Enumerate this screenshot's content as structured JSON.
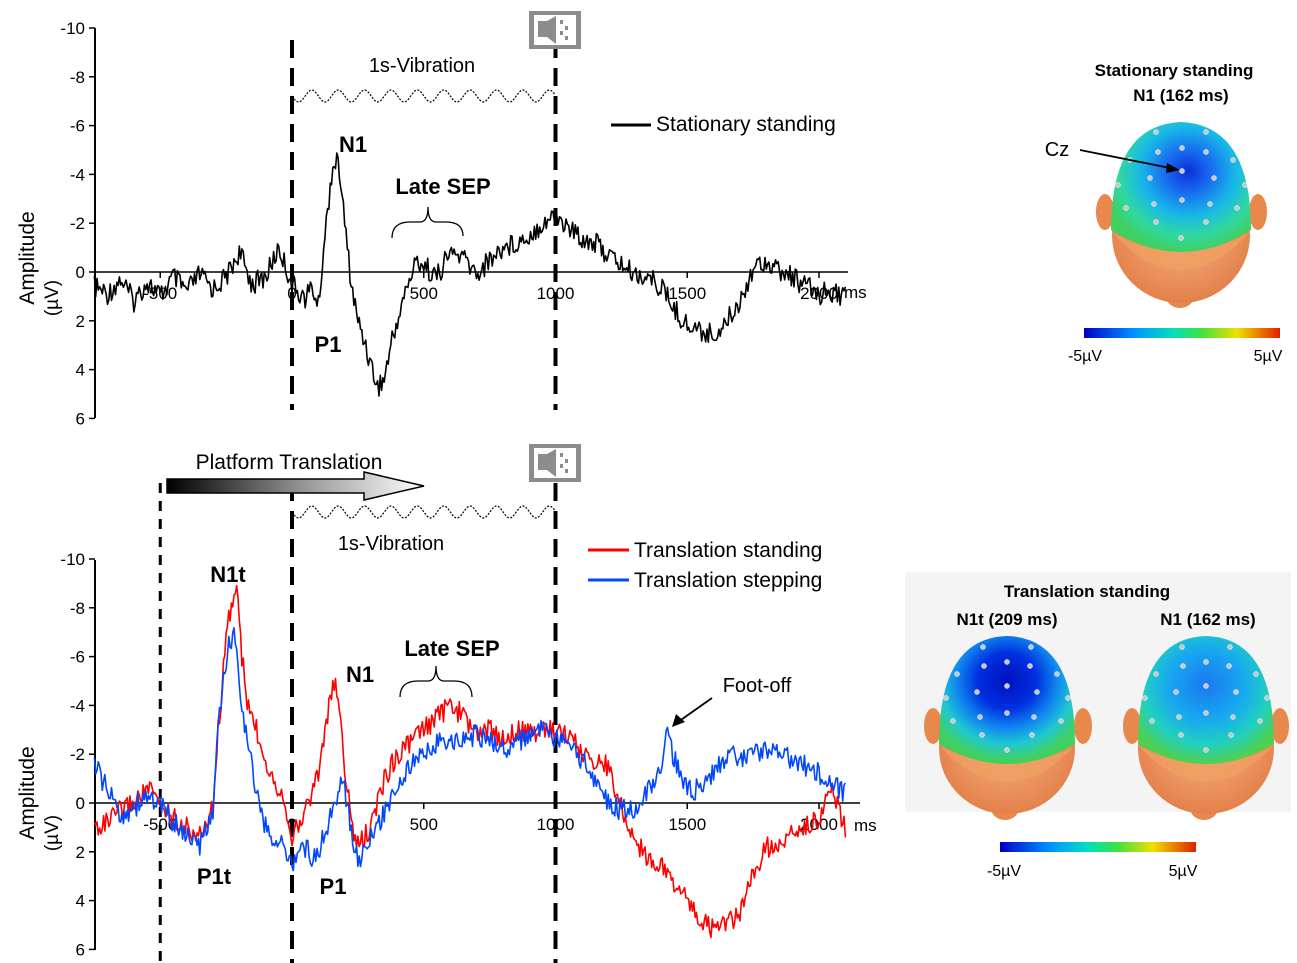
{
  "chart_data": [
    {
      "type": "line",
      "panel": "top",
      "ylabel": "Amplitude",
      "yunit": "(µV)",
      "x_unit": "ms",
      "xlim": [
        -750,
        2100
      ],
      "ylim": [
        6,
        -10
      ],
      "negative_up": true,
      "x_ticks": [
        "-500",
        "0",
        "500",
        "1000",
        "1500",
        "2000"
      ],
      "x_tick_values": [
        -500,
        0,
        500,
        1000,
        1500,
        2000
      ],
      "y_ticks": [
        "-10",
        "-8",
        "-6",
        "-4",
        "-2",
        "0",
        "2",
        "4",
        "6"
      ],
      "y_tick_values": [
        -10,
        -8,
        -6,
        -4,
        -2,
        0,
        2,
        4,
        6
      ],
      "event_lines_ms": [
        0,
        1000
      ],
      "vibration_label": "1s-Vibration",
      "series": [
        {
          "name": "Stationary standing",
          "color": "#000000",
          "x": [
            -750,
            -700,
            -650,
            -600,
            -550,
            -500,
            -450,
            -400,
            -350,
            -300,
            -250,
            -200,
            -150,
            -100,
            -50,
            0,
            25,
            50,
            75,
            100,
            125,
            150,
            162,
            180,
            200,
            225,
            250,
            275,
            300,
            325,
            350,
            375,
            400,
            425,
            450,
            475,
            500,
            550,
            600,
            650,
            700,
            750,
            800,
            850,
            900,
            950,
            1000,
            1050,
            1100,
            1150,
            1200,
            1250,
            1300,
            1350,
            1400,
            1450,
            1500,
            1550,
            1600,
            1650,
            1700,
            1750,
            1800,
            1850,
            1900,
            1950,
            2000,
            2050,
            2100
          ],
          "y": [
            0.6,
            0.9,
            0.3,
            1.2,
            0.4,
            1.0,
            0.2,
            0.8,
            0.1,
            0.7,
            0.2,
            -0.8,
            0.5,
            0.2,
            -1.0,
            0.5,
            0.8,
            1.1,
            0.6,
            1.4,
            -1.5,
            -4.0,
            -4.6,
            -4.2,
            -2.0,
            0.5,
            2.0,
            2.8,
            3.8,
            4.7,
            4.4,
            3.0,
            2.0,
            1.0,
            0.2,
            -0.5,
            -0.3,
            0.2,
            -0.8,
            -0.6,
            0.1,
            -0.5,
            -1.0,
            -1.2,
            -1.5,
            -2.0,
            -2.3,
            -1.8,
            -1.4,
            -1.2,
            -0.7,
            -0.3,
            0.1,
            0.2,
            0.6,
            1.5,
            2.2,
            2.4,
            2.6,
            2.0,
            1.2,
            -0.2,
            -0.5,
            0.0,
            0.2,
            0.6,
            0.9,
            0.8,
            1.0
          ]
        }
      ],
      "annotations": [
        {
          "text": "N1",
          "x_ms": 162
        },
        {
          "text": "P1",
          "x_ms": 75
        },
        {
          "text": "Late SEP",
          "x_ms": 540
        }
      ]
    },
    {
      "type": "line",
      "panel": "bottom",
      "ylabel": "Amplitude",
      "yunit": "(µV)",
      "x_unit": "ms",
      "xlim": [
        -750,
        2100
      ],
      "ylim": [
        6,
        -10
      ],
      "negative_up": true,
      "x_ticks": [
        "-500",
        "0",
        "500",
        "1000",
        "1500",
        "2000"
      ],
      "x_tick_values": [
        -500,
        0,
        500,
        1000,
        1500,
        2000
      ],
      "y_ticks": [
        "-10",
        "-8",
        "-6",
        "-4",
        "-2",
        "0",
        "2",
        "4",
        "6"
      ],
      "y_tick_values": [
        -10,
        -8,
        -6,
        -4,
        -2,
        0,
        2,
        4,
        6
      ],
      "event_lines_ms": [
        -500,
        0,
        1000
      ],
      "vibration_label": "1s-Vibration",
      "platform_label": "Platform Translation",
      "series": [
        {
          "name": "Translation standing",
          "color": "#ff0000",
          "x": [
            -750,
            -700,
            -650,
            -600,
            -550,
            -500,
            -450,
            -400,
            -350,
            -300,
            -280,
            -260,
            -240,
            -220,
            -209,
            -190,
            -170,
            -150,
            -120,
            -90,
            -60,
            -30,
            0,
            25,
            50,
            75,
            100,
            125,
            150,
            162,
            180,
            200,
            225,
            250,
            300,
            350,
            400,
            450,
            500,
            550,
            600,
            650,
            700,
            750,
            800,
            850,
            900,
            950,
            1000,
            1050,
            1100,
            1150,
            1200,
            1250,
            1300,
            1350,
            1400,
            1450,
            1500,
            1550,
            1600,
            1650,
            1700,
            1750,
            1800,
            1850,
            1900,
            1950,
            2000,
            2050,
            2100
          ],
          "y": [
            1.0,
            0.8,
            0.3,
            0.0,
            -0.6,
            0.0,
            0.6,
            1.0,
            1.4,
            0.2,
            -3.0,
            -5.5,
            -7.6,
            -8.5,
            -8.8,
            -6.0,
            -4.0,
            -3.5,
            -2.5,
            -1.5,
            -0.8,
            -0.2,
            1.3,
            1.0,
            0.3,
            -0.5,
            -1.2,
            -3.0,
            -4.5,
            -4.8,
            -4.0,
            -1.5,
            0.8,
            1.8,
            1.0,
            -1.0,
            -2.0,
            -2.5,
            -3.0,
            -3.5,
            -4.0,
            -3.6,
            -2.8,
            -3.0,
            -2.6,
            -3.0,
            -2.8,
            -3.1,
            -3.0,
            -2.8,
            -2.0,
            -1.8,
            -1.5,
            0.2,
            1.5,
            2.2,
            2.6,
            3.2,
            4.0,
            4.8,
            5.2,
            4.9,
            4.6,
            3.0,
            1.8,
            1.8,
            1.2,
            1.0,
            0.6,
            -0.5,
            1.0
          ]
        },
        {
          "name": "Translation stepping",
          "color": "#0047ff",
          "x": [
            -750,
            -700,
            -650,
            -600,
            -550,
            -500,
            -450,
            -400,
            -350,
            -300,
            -280,
            -260,
            -240,
            -220,
            -209,
            -190,
            -170,
            -150,
            -120,
            -90,
            -60,
            -30,
            0,
            25,
            50,
            75,
            100,
            125,
            150,
            162,
            180,
            200,
            225,
            250,
            300,
            350,
            400,
            450,
            500,
            550,
            600,
            650,
            700,
            750,
            800,
            850,
            900,
            950,
            1000,
            1050,
            1100,
            1150,
            1200,
            1250,
            1300,
            1350,
            1400,
            1420,
            1450,
            1500,
            1550,
            1600,
            1650,
            1700,
            1750,
            1800,
            1850,
            1900,
            1950,
            2000,
            2050,
            2100
          ],
          "y": [
            -1.6,
            -0.5,
            0.5,
            0.2,
            -0.3,
            0.1,
            0.8,
            1.3,
            1.8,
            0.3,
            -3.0,
            -5.0,
            -6.5,
            -6.8,
            -6.3,
            -4.0,
            -2.5,
            -1.5,
            0.5,
            1.2,
            1.6,
            1.8,
            2.5,
            2.0,
            1.8,
            2.2,
            2.0,
            1.2,
            0.4,
            0.0,
            -0.8,
            -0.5,
            1.0,
            2.4,
            1.5,
            0.4,
            -0.8,
            -1.5,
            -2.0,
            -2.5,
            -2.4,
            -2.6,
            -2.8,
            -2.6,
            -2.2,
            -2.5,
            -2.8,
            -3.0,
            -2.6,
            -2.3,
            -1.8,
            -1.0,
            0.0,
            0.3,
            0.2,
            -0.5,
            -1.5,
            -2.9,
            -1.8,
            -0.6,
            -0.5,
            -1.2,
            -2.0,
            -1.8,
            -2.0,
            -2.2,
            -2.0,
            -1.8,
            -1.5,
            -1.2,
            -0.8,
            -0.4
          ]
        }
      ],
      "annotations": [
        {
          "text": "N1t",
          "x_ms": -209
        },
        {
          "text": "P1t",
          "x_ms": -240
        },
        {
          "text": "N1",
          "x_ms": 162
        },
        {
          "text": "P1",
          "x_ms": 75
        },
        {
          "text": "Late SEP",
          "x_ms": 540
        },
        {
          "text": "Foot-off",
          "x_ms": 1420
        }
      ]
    }
  ],
  "labels": {
    "top_n1": "N1",
    "top_p1": "P1",
    "top_late_sep": "Late SEP",
    "top_vibration": "1s-Vibration",
    "top_legend": "Stationary standing",
    "top_ylabel": "Amplitude",
    "top_yunit": "(µV)",
    "ms": "ms",
    "bot_platform": "Platform Translation",
    "bot_vibration": "1s-Vibration",
    "bot_legend_red": "Translation standing",
    "bot_legend_blue": "Translation stepping",
    "bot_n1t": "N1t",
    "bot_p1t": "P1t",
    "bot_n1": "N1",
    "bot_p1": "P1",
    "bot_late_sep": "Late SEP",
    "bot_foot_off": "Foot-off",
    "bot_ylabel": "Amplitude",
    "bot_yunit": "(µV)"
  },
  "topomaps": {
    "top_title_1": "Stationary standing",
    "top_title_2": "N1 (162 ms)",
    "top_electrode": "Cz",
    "top_scale_min": "-5µV",
    "top_scale_max": "5µV",
    "bottom_title": "Translation standing",
    "bottom_left_label": "N1t (209 ms)",
    "bottom_right_label": "N1 (162 ms)",
    "bottom_scale_min": "-5µV",
    "bottom_scale_max": "5µV"
  },
  "colors": {
    "stationary": "#000000",
    "translation_standing": "#ff0000",
    "translation_stepping": "#0047ff",
    "speaker_icon": "#8c8c8c"
  },
  "icons": [
    "speaker-icon",
    "speaker-icon"
  ]
}
